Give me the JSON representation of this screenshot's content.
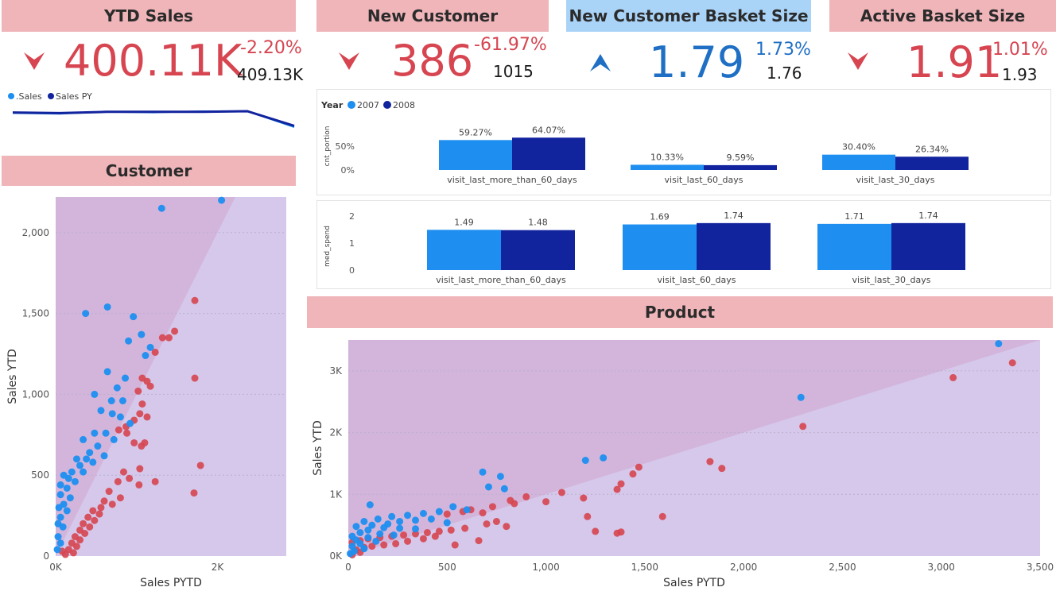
{
  "kpis": {
    "ytd_sales": {
      "title": "YTD Sales",
      "value": "400.11K",
      "change": "-2.20%",
      "previous": "409.13K"
    },
    "new_customer": {
      "title": "New Customer",
      "value": "386",
      "change": "-61.97%",
      "previous": "1015"
    },
    "new_basket": {
      "title": "New Customer Basket Size",
      "value": "1.79",
      "change": "1.73%",
      "previous": "1.76"
    },
    "active_basket": {
      "title": "Active Basket Size",
      "value": "1.91",
      "change": "-1.01%",
      "previous": "1.93"
    }
  },
  "sections": {
    "customer": "Customer",
    "product": "Product"
  },
  "colors": {
    "red": "#d64550",
    "blue": "#1f6fc5",
    "header_pink": "#efb5b9",
    "header_blue": "#a9d3f7",
    "series_light": "#1e8ff0",
    "series_dark": "#12239e"
  },
  "chart_data": [
    {
      "type": "line",
      "legend": [
        "Sales",
        "Sales PY"
      ],
      "series": [
        {
          "name": "Sales",
          "values": [
            52,
            51,
            54,
            53,
            55,
            55,
            30
          ]
        },
        {
          "name": "Sales PY",
          "values": [
            53,
            52,
            54,
            54,
            54,
            55,
            32
          ]
        }
      ]
    },
    {
      "type": "bar",
      "legend_title": "Year",
      "series_names": [
        "2007",
        "2008"
      ],
      "categories": [
        "visit_last_more_than_60_days",
        "visit_last_60_days",
        "visit_last_30_days"
      ],
      "series": [
        {
          "name": "2007",
          "values": [
            59.27,
            10.33,
            30.4
          ],
          "labels": [
            "59.27%",
            "10.33%",
            "30.40%"
          ]
        },
        {
          "name": "2008",
          "values": [
            64.07,
            9.59,
            26.34
          ],
          "labels": [
            "64.07%",
            "9.59%",
            "26.34%"
          ]
        }
      ],
      "ylabel": "cnt_portion",
      "yticks": [
        "0%",
        "50%"
      ],
      "ylim": [
        0,
        70
      ]
    },
    {
      "type": "bar",
      "categories": [
        "visit_last_more_than_60_days",
        "visit_last_60_days",
        "visit_last_30_days"
      ],
      "series": [
        {
          "name": "2007",
          "values": [
            1.49,
            1.69,
            1.71
          ],
          "labels": [
            "1.49",
            "1.69",
            "1.71"
          ]
        },
        {
          "name": "2008",
          "values": [
            1.48,
            1.74,
            1.74
          ],
          "labels": [
            "1.48",
            "1.74",
            "1.74"
          ]
        }
      ],
      "ylabel": "med_spend",
      "yticks": [
        "0",
        "1",
        "2"
      ],
      "ylim": [
        0,
        2
      ]
    },
    {
      "type": "scatter",
      "xlabel": "Sales PYTD",
      "ylabel": "Sales YTD",
      "xlim": [
        0,
        2850
      ],
      "ylim": [
        0,
        2220
      ],
      "xticks": [
        {
          "v": 0,
          "t": "0K"
        },
        {
          "v": 2000,
          "t": "2K"
        }
      ],
      "yticks": [
        {
          "v": 0,
          "t": "0"
        },
        {
          "v": 500,
          "t": "500"
        },
        {
          "v": 1000,
          "t": "1,000"
        },
        {
          "v": 1500,
          "t": "1,500"
        },
        {
          "v": 2000,
          "t": "2,000"
        }
      ],
      "points_up": [
        [
          2050,
          2200
        ],
        [
          1310,
          2150
        ],
        [
          370,
          1500
        ],
        [
          640,
          1540
        ],
        [
          960,
          1480
        ],
        [
          900,
          1330
        ],
        [
          1170,
          1290
        ],
        [
          1110,
          1240
        ],
        [
          1060,
          1370
        ],
        [
          640,
          1140
        ],
        [
          860,
          1100
        ],
        [
          760,
          1040
        ],
        [
          480,
          1000
        ],
        [
          690,
          960
        ],
        [
          830,
          960
        ],
        [
          560,
          900
        ],
        [
          700,
          880
        ],
        [
          800,
          860
        ],
        [
          920,
          820
        ],
        [
          480,
          760
        ],
        [
          620,
          760
        ],
        [
          720,
          720
        ],
        [
          340,
          720
        ],
        [
          520,
          680
        ],
        [
          420,
          640
        ],
        [
          600,
          620
        ],
        [
          260,
          600
        ],
        [
          380,
          600
        ],
        [
          460,
          580
        ],
        [
          300,
          560
        ],
        [
          200,
          520
        ],
        [
          340,
          520
        ],
        [
          100,
          500
        ],
        [
          160,
          480
        ],
        [
          240,
          460
        ],
        [
          60,
          440
        ],
        [
          140,
          420
        ],
        [
          60,
          380
        ],
        [
          180,
          360
        ],
        [
          100,
          320
        ],
        [
          40,
          300
        ],
        [
          140,
          280
        ],
        [
          60,
          240
        ],
        [
          30,
          200
        ],
        [
          90,
          180
        ],
        [
          30,
          120
        ],
        [
          60,
          80
        ],
        [
          20,
          40
        ]
      ],
      "points_down": [
        [
          1720,
          1580
        ],
        [
          1470,
          1390
        ],
        [
          1400,
          1350
        ],
        [
          1320,
          1350
        ],
        [
          1230,
          1260
        ],
        [
          1720,
          1100
        ],
        [
          1070,
          1100
        ],
        [
          1130,
          1080
        ],
        [
          1170,
          1050
        ],
        [
          1020,
          1020
        ],
        [
          1070,
          940
        ],
        [
          1040,
          880
        ],
        [
          1130,
          860
        ],
        [
          970,
          840
        ],
        [
          870,
          800
        ],
        [
          780,
          780
        ],
        [
          880,
          760
        ],
        [
          1100,
          700
        ],
        [
          970,
          700
        ],
        [
          1060,
          680
        ],
        [
          1790,
          560
        ],
        [
          1040,
          540
        ],
        [
          840,
          520
        ],
        [
          910,
          480
        ],
        [
          1230,
          460
        ],
        [
          1030,
          440
        ],
        [
          1710,
          390
        ],
        [
          770,
          460
        ],
        [
          660,
          400
        ],
        [
          800,
          360
        ],
        [
          600,
          340
        ],
        [
          700,
          320
        ],
        [
          560,
          300
        ],
        [
          460,
          280
        ],
        [
          540,
          260
        ],
        [
          400,
          240
        ],
        [
          480,
          220
        ],
        [
          340,
          200
        ],
        [
          420,
          180
        ],
        [
          300,
          160
        ],
        [
          360,
          140
        ],
        [
          240,
          120
        ],
        [
          300,
          100
        ],
        [
          200,
          80
        ],
        [
          260,
          60
        ],
        [
          160,
          40
        ],
        [
          220,
          20
        ],
        [
          120,
          10
        ],
        [
          80,
          30
        ]
      ]
    },
    {
      "type": "scatter",
      "xlabel": "Sales PYTD",
      "ylabel": "Sales YTD",
      "xlim": [
        0,
        3500
      ],
      "ylim": [
        0,
        3500
      ],
      "xticks": [
        {
          "v": 0,
          "t": "0"
        },
        {
          "v": 500,
          "t": "500"
        },
        {
          "v": 1000,
          "t": "1,000"
        },
        {
          "v": 1500,
          "t": "1,500"
        },
        {
          "v": 2000,
          "t": "2,000"
        },
        {
          "v": 2500,
          "t": "2,500"
        },
        {
          "v": 3000,
          "t": "3,000"
        },
        {
          "v": 3500,
          "t": "3,500"
        }
      ],
      "yticks": [
        {
          "v": 0,
          "t": "0K"
        },
        {
          "v": 1000,
          "t": "1K"
        },
        {
          "v": 2000,
          "t": "2K"
        },
        {
          "v": 3000,
          "t": "3K"
        }
      ],
      "points_up": [
        [
          3290,
          3440
        ],
        [
          2290,
          2570
        ],
        [
          1290,
          1590
        ],
        [
          1200,
          1550
        ],
        [
          680,
          1360
        ],
        [
          770,
          1290
        ],
        [
          790,
          1090
        ],
        [
          710,
          1120
        ],
        [
          110,
          830
        ],
        [
          530,
          800
        ],
        [
          600,
          750
        ],
        [
          460,
          720
        ],
        [
          380,
          690
        ],
        [
          300,
          660
        ],
        [
          220,
          640
        ],
        [
          150,
          600
        ],
        [
          80,
          560
        ],
        [
          260,
          560
        ],
        [
          340,
          580
        ],
        [
          420,
          600
        ],
        [
          500,
          540
        ],
        [
          200,
          520
        ],
        [
          120,
          500
        ],
        [
          40,
          480
        ],
        [
          180,
          460
        ],
        [
          260,
          450
        ],
        [
          340,
          440
        ],
        [
          100,
          420
        ],
        [
          60,
          380
        ],
        [
          160,
          360
        ],
        [
          230,
          340
        ],
        [
          20,
          320
        ],
        [
          100,
          300
        ],
        [
          40,
          260
        ],
        [
          140,
          240
        ],
        [
          60,
          200
        ],
        [
          20,
          160
        ],
        [
          80,
          120
        ],
        [
          30,
          80
        ],
        [
          10,
          40
        ]
      ],
      "points_down": [
        [
          3360,
          3130
        ],
        [
          3060,
          2890
        ],
        [
          2300,
          2100
        ],
        [
          1830,
          1530
        ],
        [
          1890,
          1420
        ],
        [
          1470,
          1440
        ],
        [
          1440,
          1330
        ],
        [
          1380,
          1170
        ],
        [
          1360,
          1080
        ],
        [
          1190,
          940
        ],
        [
          1080,
          1030
        ],
        [
          900,
          960
        ],
        [
          820,
          900
        ],
        [
          840,
          850
        ],
        [
          1000,
          880
        ],
        [
          730,
          800
        ],
        [
          620,
          750
        ],
        [
          580,
          720
        ],
        [
          680,
          700
        ],
        [
          500,
          680
        ],
        [
          1210,
          640
        ],
        [
          1590,
          640
        ],
        [
          1380,
          390
        ],
        [
          1360,
          370
        ],
        [
          1250,
          400
        ],
        [
          750,
          560
        ],
        [
          700,
          520
        ],
        [
          800,
          480
        ],
        [
          590,
          450
        ],
        [
          520,
          420
        ],
        [
          460,
          400
        ],
        [
          400,
          380
        ],
        [
          340,
          360
        ],
        [
          280,
          340
        ],
        [
          220,
          320
        ],
        [
          160,
          300
        ],
        [
          100,
          280
        ],
        [
          60,
          250
        ],
        [
          20,
          220
        ],
        [
          440,
          320
        ],
        [
          380,
          280
        ],
        [
          300,
          240
        ],
        [
          240,
          200
        ],
        [
          180,
          180
        ],
        [
          120,
          160
        ],
        [
          80,
          140
        ],
        [
          40,
          100
        ],
        [
          60,
          60
        ],
        [
          20,
          20
        ],
        [
          660,
          250
        ],
        [
          540,
          180
        ]
      ]
    }
  ]
}
